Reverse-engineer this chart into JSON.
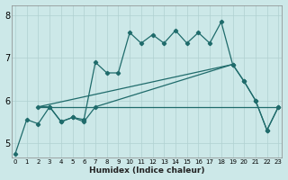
{
  "xlabel": "Humidex (Indice chaleur)",
  "bg_color": "#cce8e8",
  "line_color": "#1f6b6b",
  "xlim": [
    -0.3,
    23.3
  ],
  "ylim": [
    4.65,
    8.25
  ],
  "yticks": [
    5,
    6,
    7,
    8
  ],
  "xticks": [
    0,
    1,
    2,
    3,
    4,
    5,
    6,
    7,
    8,
    9,
    10,
    11,
    12,
    13,
    14,
    15,
    16,
    17,
    18,
    19,
    20,
    21,
    22,
    23
  ],
  "line1_x": [
    0,
    1,
    2,
    3,
    4,
    5,
    6,
    7,
    8,
    9,
    10,
    11,
    12,
    13,
    14,
    15,
    16,
    17,
    18,
    19,
    20,
    21,
    22,
    23
  ],
  "line1_y": [
    4.75,
    5.55,
    5.45,
    5.85,
    5.5,
    5.6,
    5.55,
    6.9,
    6.65,
    6.65,
    7.6,
    7.35,
    7.55,
    7.35,
    7.65,
    7.35,
    7.6,
    7.35,
    7.85,
    6.85,
    6.45,
    6.0,
    5.3,
    5.85
  ],
  "line2_x": [
    2,
    3,
    4,
    5,
    6,
    7,
    19,
    20,
    21,
    22,
    23
  ],
  "line2_y": [
    5.85,
    5.85,
    5.5,
    5.6,
    5.5,
    5.85,
    6.85,
    6.45,
    6.0,
    5.3,
    5.85
  ],
  "line3_x": [
    2,
    19
  ],
  "line3_y": [
    5.85,
    6.85
  ],
  "line4_x": [
    2,
    23
  ],
  "line4_y": [
    5.85,
    5.85
  ]
}
